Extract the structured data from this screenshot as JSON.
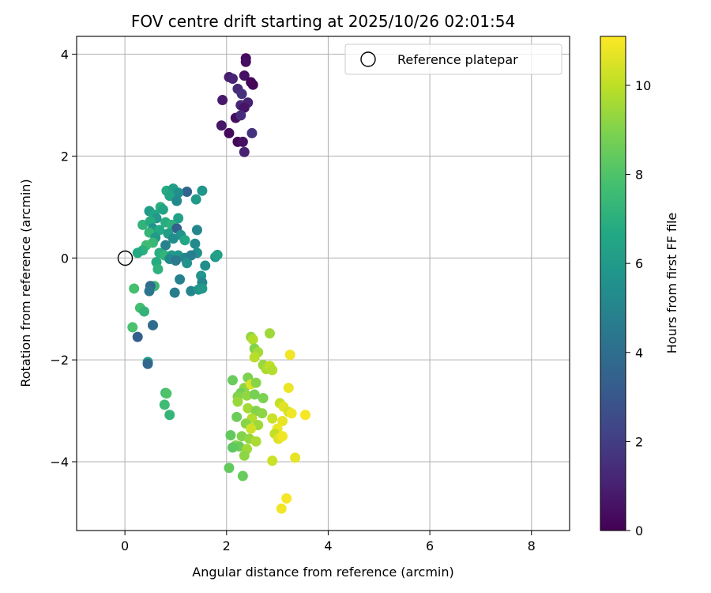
{
  "chart_data": {
    "type": "scatter",
    "title": "FOV centre drift starting at 2025/10/26 02:01:54",
    "xlabel": "Angular distance from reference (arcmin)",
    "ylabel": "Rotation from reference (arcmin)",
    "xlim": [
      -0.95,
      8.75
    ],
    "ylim": [
      -5.35,
      4.35
    ],
    "xticks": [
      0,
      2,
      4,
      6,
      8
    ],
    "yticks": [
      -4,
      -2,
      0,
      2,
      4
    ],
    "grid": true,
    "legend": {
      "placement": "top-right",
      "entries": [
        "Reference platepar"
      ]
    },
    "reference_point": {
      "x": 0,
      "y": 0,
      "label": "Reference platepar"
    },
    "colorbar": {
      "label": "Hours from first FF file",
      "range": [
        0,
        11.1
      ],
      "ticks": [
        0,
        2,
        4,
        6,
        8,
        10
      ],
      "colormap": "viridis"
    },
    "points": [
      {
        "x": 2.38,
        "y": 3.92,
        "t": 0.3
      },
      {
        "x": 2.38,
        "y": 3.85,
        "t": 0.4
      },
      {
        "x": 2.05,
        "y": 3.55,
        "t": 0.9
      },
      {
        "x": 2.12,
        "y": 3.52,
        "t": 1.1
      },
      {
        "x": 2.35,
        "y": 3.58,
        "t": 0.5
      },
      {
        "x": 2.48,
        "y": 3.45,
        "t": 0.2
      },
      {
        "x": 2.52,
        "y": 3.4,
        "t": 0.1
      },
      {
        "x": 2.22,
        "y": 3.32,
        "t": 1.3
      },
      {
        "x": 2.3,
        "y": 3.22,
        "t": 1.5
      },
      {
        "x": 1.92,
        "y": 3.1,
        "t": 0.8
      },
      {
        "x": 2.42,
        "y": 3.05,
        "t": 1.0
      },
      {
        "x": 2.28,
        "y": 3.0,
        "t": 1.2
      },
      {
        "x": 2.35,
        "y": 2.95,
        "t": 0.6
      },
      {
        "x": 2.18,
        "y": 2.75,
        "t": 0.4
      },
      {
        "x": 2.28,
        "y": 2.8,
        "t": 1.4
      },
      {
        "x": 1.9,
        "y": 2.6,
        "t": 0.7
      },
      {
        "x": 2.05,
        "y": 2.45,
        "t": 0.3
      },
      {
        "x": 2.5,
        "y": 2.45,
        "t": 1.6
      },
      {
        "x": 2.22,
        "y": 2.28,
        "t": 0.2
      },
      {
        "x": 2.32,
        "y": 2.28,
        "t": 0.5
      },
      {
        "x": 2.35,
        "y": 2.08,
        "t": 1.0
      },
      {
        "x": 1.22,
        "y": 1.3,
        "t": 3.6
      },
      {
        "x": 1.52,
        "y": 1.32,
        "t": 5.8
      },
      {
        "x": 0.82,
        "y": 1.32,
        "t": 6.8
      },
      {
        "x": 0.95,
        "y": 1.36,
        "t": 6.2
      },
      {
        "x": 1.05,
        "y": 1.28,
        "t": 5.5
      },
      {
        "x": 0.88,
        "y": 1.22,
        "t": 6.5
      },
      {
        "x": 1.4,
        "y": 1.15,
        "t": 6.0
      },
      {
        "x": 1.02,
        "y": 1.12,
        "t": 5.2
      },
      {
        "x": 0.7,
        "y": 1.0,
        "t": 7.0
      },
      {
        "x": 0.75,
        "y": 0.95,
        "t": 6.4
      },
      {
        "x": 0.48,
        "y": 0.92,
        "t": 6.1
      },
      {
        "x": 0.58,
        "y": 0.85,
        "t": 6.6
      },
      {
        "x": 0.62,
        "y": 0.78,
        "t": 5.9
      },
      {
        "x": 1.05,
        "y": 0.78,
        "t": 6.3
      },
      {
        "x": 0.35,
        "y": 0.65,
        "t": 7.2
      },
      {
        "x": 0.5,
        "y": 0.72,
        "t": 6.8
      },
      {
        "x": 0.8,
        "y": 0.7,
        "t": 6.9
      },
      {
        "x": 0.92,
        "y": 0.65,
        "t": 7.1
      },
      {
        "x": 0.55,
        "y": 0.58,
        "t": 5.6
      },
      {
        "x": 0.68,
        "y": 0.55,
        "t": 6.7
      },
      {
        "x": 1.02,
        "y": 0.58,
        "t": 3.4
      },
      {
        "x": 1.42,
        "y": 0.55,
        "t": 5.1
      },
      {
        "x": 0.48,
        "y": 0.5,
        "t": 7.3
      },
      {
        "x": 0.85,
        "y": 0.48,
        "t": 6.2
      },
      {
        "x": 1.1,
        "y": 0.45,
        "t": 5.7
      },
      {
        "x": 0.6,
        "y": 0.4,
        "t": 6.0
      },
      {
        "x": 0.95,
        "y": 0.38,
        "t": 5.4
      },
      {
        "x": 1.18,
        "y": 0.35,
        "t": 6.6
      },
      {
        "x": 0.55,
        "y": 0.3,
        "t": 7.4
      },
      {
        "x": 0.8,
        "y": 0.25,
        "t": 4.9
      },
      {
        "x": 1.38,
        "y": 0.28,
        "t": 5.3
      },
      {
        "x": 1.42,
        "y": 0.1,
        "t": 5.5
      },
      {
        "x": 0.42,
        "y": 0.25,
        "t": 7.6
      },
      {
        "x": 0.35,
        "y": 0.15,
        "t": 7.0
      },
      {
        "x": 0.25,
        "y": 0.1,
        "t": 6.7
      },
      {
        "x": 0.68,
        "y": 0.1,
        "t": 6.9
      },
      {
        "x": 0.78,
        "y": 0.05,
        "t": 7.2
      },
      {
        "x": 0.92,
        "y": 0.05,
        "t": 6.1
      },
      {
        "x": 1.05,
        "y": 0.05,
        "t": 5.8
      },
      {
        "x": 1.18,
        "y": 0.0,
        "t": 5.0
      },
      {
        "x": 1.3,
        "y": 0.05,
        "t": 4.7
      },
      {
        "x": 0.88,
        "y": -0.02,
        "t": 5.2
      },
      {
        "x": 1.0,
        "y": -0.05,
        "t": 4.5
      },
      {
        "x": 1.78,
        "y": 0.02,
        "t": 5.9
      },
      {
        "x": 1.82,
        "y": 0.06,
        "t": 6.3
      },
      {
        "x": 0.62,
        "y": -0.08,
        "t": 6.8
      },
      {
        "x": 1.22,
        "y": -0.1,
        "t": 5.6
      },
      {
        "x": 1.58,
        "y": -0.15,
        "t": 5.4
      },
      {
        "x": 0.65,
        "y": -0.22,
        "t": 7.1
      },
      {
        "x": 1.5,
        "y": -0.35,
        "t": 5.7
      },
      {
        "x": 1.52,
        "y": -0.48,
        "t": 5.1
      },
      {
        "x": 1.08,
        "y": -0.42,
        "t": 4.8
      },
      {
        "x": 0.58,
        "y": -0.55,
        "t": 7.5
      },
      {
        "x": 0.5,
        "y": -0.55,
        "t": 3.9
      },
      {
        "x": 0.18,
        "y": -0.6,
        "t": 7.8
      },
      {
        "x": 0.48,
        "y": -0.65,
        "t": 4.3
      },
      {
        "x": 1.3,
        "y": -0.65,
        "t": 5.0
      },
      {
        "x": 1.45,
        "y": -0.62,
        "t": 5.6
      },
      {
        "x": 1.52,
        "y": -0.6,
        "t": 5.9
      },
      {
        "x": 0.98,
        "y": -0.68,
        "t": 4.6
      },
      {
        "x": 0.3,
        "y": -0.98,
        "t": 7.7
      },
      {
        "x": 0.38,
        "y": -1.05,
        "t": 7.2
      },
      {
        "x": 0.55,
        "y": -1.32,
        "t": 3.8
      },
      {
        "x": 0.15,
        "y": -1.36,
        "t": 7.9
      },
      {
        "x": 0.25,
        "y": -1.55,
        "t": 3.3
      },
      {
        "x": 0.45,
        "y": -2.04,
        "t": 6.2
      },
      {
        "x": 0.45,
        "y": -2.08,
        "t": 3.7
      },
      {
        "x": 0.8,
        "y": -2.65,
        "t": 7.4
      },
      {
        "x": 0.82,
        "y": -2.66,
        "t": 8.0
      },
      {
        "x": 0.78,
        "y": -2.88,
        "t": 7.6
      },
      {
        "x": 0.88,
        "y": -3.08,
        "t": 7.3
      },
      {
        "x": 2.48,
        "y": -1.55,
        "t": 9.3
      },
      {
        "x": 2.52,
        "y": -1.6,
        "t": 9.8
      },
      {
        "x": 2.85,
        "y": -1.48,
        "t": 9.5
      },
      {
        "x": 3.25,
        "y": -1.9,
        "t": 10.9
      },
      {
        "x": 2.55,
        "y": -1.78,
        "t": 9.0
      },
      {
        "x": 2.62,
        "y": -1.85,
        "t": 9.6
      },
      {
        "x": 2.55,
        "y": -1.95,
        "t": 9.9
      },
      {
        "x": 2.72,
        "y": -2.1,
        "t": 9.4
      },
      {
        "x": 2.78,
        "y": -2.18,
        "t": 9.7
      },
      {
        "x": 2.85,
        "y": -2.12,
        "t": 10.0
      },
      {
        "x": 2.9,
        "y": -2.2,
        "t": 9.8
      },
      {
        "x": 2.12,
        "y": -2.4,
        "t": 8.5
      },
      {
        "x": 2.42,
        "y": -2.35,
        "t": 8.9
      },
      {
        "x": 2.35,
        "y": -2.55,
        "t": 9.2
      },
      {
        "x": 2.48,
        "y": -2.48,
        "t": 10.5
      },
      {
        "x": 2.58,
        "y": -2.45,
        "t": 9.1
      },
      {
        "x": 3.22,
        "y": -2.55,
        "t": 10.8
      },
      {
        "x": 2.28,
        "y": -2.65,
        "t": 8.7
      },
      {
        "x": 2.22,
        "y": -2.72,
        "t": 9.0
      },
      {
        "x": 2.4,
        "y": -2.7,
        "t": 9.3
      },
      {
        "x": 2.55,
        "y": -2.68,
        "t": 8.8
      },
      {
        "x": 2.72,
        "y": -2.75,
        "t": 8.9
      },
      {
        "x": 2.22,
        "y": -2.82,
        "t": 9.4
      },
      {
        "x": 3.05,
        "y": -2.85,
        "t": 10.1
      },
      {
        "x": 3.12,
        "y": -2.92,
        "t": 10.6
      },
      {
        "x": 2.42,
        "y": -2.95,
        "t": 9.6
      },
      {
        "x": 2.58,
        "y": -3.0,
        "t": 9.0
      },
      {
        "x": 2.7,
        "y": -3.05,
        "t": 9.2
      },
      {
        "x": 3.22,
        "y": -3.02,
        "t": 10.4
      },
      {
        "x": 3.28,
        "y": -3.05,
        "t": 10.9
      },
      {
        "x": 3.55,
        "y": -3.08,
        "t": 11.0
      },
      {
        "x": 2.2,
        "y": -3.12,
        "t": 8.6
      },
      {
        "x": 2.5,
        "y": -3.15,
        "t": 9.8
      },
      {
        "x": 2.9,
        "y": -3.15,
        "t": 10.2
      },
      {
        "x": 3.1,
        "y": -3.2,
        "t": 10.7
      },
      {
        "x": 2.38,
        "y": -3.25,
        "t": 9.1
      },
      {
        "x": 2.62,
        "y": -3.28,
        "t": 9.5
      },
      {
        "x": 2.48,
        "y": -3.35,
        "t": 10.3
      },
      {
        "x": 3.0,
        "y": -3.35,
        "t": 10.8
      },
      {
        "x": 2.95,
        "y": -3.45,
        "t": 10.1
      },
      {
        "x": 2.08,
        "y": -3.48,
        "t": 8.4
      },
      {
        "x": 2.3,
        "y": -3.5,
        "t": 9.0
      },
      {
        "x": 2.45,
        "y": -3.55,
        "t": 9.3
      },
      {
        "x": 3.02,
        "y": -3.55,
        "t": 10.6
      },
      {
        "x": 3.1,
        "y": -3.5,
        "t": 10.9
      },
      {
        "x": 2.58,
        "y": -3.6,
        "t": 9.7
      },
      {
        "x": 2.18,
        "y": -3.68,
        "t": 9.1
      },
      {
        "x": 2.25,
        "y": -3.7,
        "t": 8.6
      },
      {
        "x": 2.12,
        "y": -3.72,
        "t": 8.3
      },
      {
        "x": 2.4,
        "y": -3.75,
        "t": 9.5
      },
      {
        "x": 2.35,
        "y": -3.88,
        "t": 9.2
      },
      {
        "x": 3.35,
        "y": -3.92,
        "t": 10.7
      },
      {
        "x": 2.9,
        "y": -3.98,
        "t": 10.2
      },
      {
        "x": 2.05,
        "y": -4.12,
        "t": 8.4
      },
      {
        "x": 2.32,
        "y": -4.28,
        "t": 8.5
      },
      {
        "x": 3.18,
        "y": -4.72,
        "t": 11.0
      },
      {
        "x": 3.08,
        "y": -4.92,
        "t": 10.9
      }
    ]
  }
}
